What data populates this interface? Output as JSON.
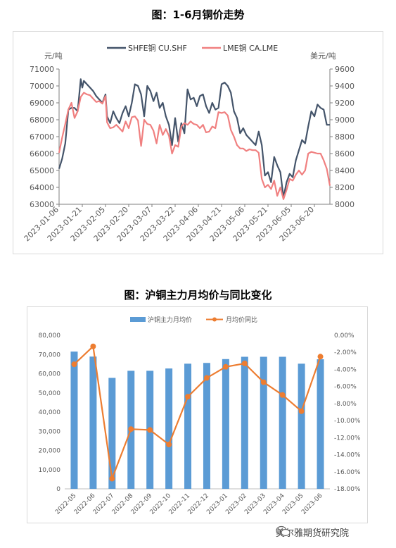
{
  "titles": {
    "chart1": "图：1-6月铜价走势",
    "chart2": "图：沪铜主力月均价与同比变化"
  },
  "watermark": "美尔雅期货研究院",
  "colors": {
    "shfe": "#44546a",
    "lme": "#f08080",
    "bar": "#5b9bd5",
    "yoy": "#ed7d31"
  },
  "chart_data": [
    {
      "type": "line",
      "left_unit": "元/吨",
      "right_unit": "美元/吨",
      "y_left": {
        "min": 63000,
        "max": 71000,
        "step": 1000
      },
      "y_right": {
        "min": 8000,
        "max": 9600,
        "step": 200
      },
      "x_ticks": [
        "2023-01-06",
        "2023-01-21",
        "2023-02-05",
        "2023-02-20",
        "2023-03-07",
        "2023-03-22",
        "2023-04-06",
        "2023-04-21",
        "2023-05-06",
        "2023-05-21",
        "2023-06-05",
        "2023-06-20"
      ],
      "x_range": [
        0,
        175
      ],
      "series": [
        {
          "name": "SHFE铜 CU.SHF",
          "axis": "left",
          "points": [
            [
              0,
              65100
            ],
            [
              2,
              65700
            ],
            [
              4,
              66600
            ],
            [
              6,
              68600
            ],
            [
              8,
              68700
            ],
            [
              10,
              68700
            ],
            [
              12,
              68500
            ],
            [
              14,
              70400
            ],
            [
              15,
              69900
            ],
            [
              16,
              70300
            ],
            [
              18,
              70100
            ],
            [
              20,
              69900
            ],
            [
              22,
              69700
            ],
            [
              24,
              69400
            ],
            [
              26,
              69200
            ],
            [
              28,
              69000
            ],
            [
              30,
              69500
            ],
            [
              31,
              68200
            ],
            [
              33,
              67800
            ],
            [
              35,
              68500
            ],
            [
              37,
              68100
            ],
            [
              39,
              67800
            ],
            [
              41,
              68400
            ],
            [
              43,
              68800
            ],
            [
              45,
              68200
            ],
            [
              47,
              69000
            ],
            [
              49,
              70100
            ],
            [
              51,
              70000
            ],
            [
              53,
              69500
            ],
            [
              55,
              68200
            ],
            [
              57,
              70000
            ],
            [
              59,
              69700
            ],
            [
              61,
              69100
            ],
            [
              63,
              69600
            ],
            [
              65,
              68700
            ],
            [
              67,
              69000
            ],
            [
              69,
              68200
            ],
            [
              71,
              67700
            ],
            [
              73,
              66500
            ],
            [
              75,
              68100
            ],
            [
              77,
              66700
            ],
            [
              79,
              67800
            ],
            [
              81,
              67200
            ],
            [
              83,
              69800
            ],
            [
              85,
              69200
            ],
            [
              87,
              69300
            ],
            [
              89,
              68800
            ],
            [
              91,
              69400
            ],
            [
              93,
              69500
            ],
            [
              95,
              68800
            ],
            [
              97,
              68400
            ],
            [
              99,
              69000
            ],
            [
              101,
              68600
            ],
            [
              103,
              68700
            ],
            [
              105,
              70100
            ],
            [
              107,
              70200
            ],
            [
              109,
              70000
            ],
            [
              111,
              69600
            ],
            [
              113,
              68500
            ],
            [
              115,
              68100
            ],
            [
              117,
              67200
            ],
            [
              119,
              67500
            ],
            [
              121,
              67100
            ],
            [
              123,
              66900
            ],
            [
              125,
              66700
            ],
            [
              127,
              66500
            ],
            [
              129,
              67300
            ],
            [
              131,
              66500
            ],
            [
              133,
              64700
            ],
            [
              135,
              64900
            ],
            [
              137,
              64300
            ],
            [
              139,
              65800
            ],
            [
              141,
              65300
            ],
            [
              143,
              64900
            ],
            [
              145,
              63400
            ],
            [
              147,
              64300
            ],
            [
              149,
              64800
            ],
            [
              151,
              64600
            ],
            [
              153,
              65600
            ],
            [
              155,
              66200
            ],
            [
              157,
              66800
            ],
            [
              159,
              66600
            ],
            [
              161,
              67600
            ],
            [
              163,
              68500
            ],
            [
              165,
              68200
            ],
            [
              167,
              68900
            ],
            [
              169,
              68700
            ],
            [
              171,
              68600
            ],
            [
              173,
              67700
            ],
            [
              175,
              67700
            ]
          ]
        },
        {
          "name": "LME铜 CA.LME",
          "axis": "right",
          "points": [
            [
              0,
              8610
            ],
            [
              2,
              8790
            ],
            [
              4,
              8950
            ],
            [
              6,
              9120
            ],
            [
              8,
              9200
            ],
            [
              10,
              9020
            ],
            [
              12,
              9100
            ],
            [
              14,
              9270
            ],
            [
              16,
              9320
            ],
            [
              18,
              9300
            ],
            [
              20,
              9290
            ],
            [
              22,
              9250
            ],
            [
              24,
              9210
            ],
            [
              26,
              9220
            ],
            [
              28,
              9190
            ],
            [
              30,
              9280
            ],
            [
              31,
              8970
            ],
            [
              33,
              8900
            ],
            [
              35,
              8910
            ],
            [
              37,
              8940
            ],
            [
              39,
              8900
            ],
            [
              41,
              8860
            ],
            [
              43,
              8980
            ],
            [
              45,
              8900
            ],
            [
              47,
              9030
            ],
            [
              49,
              9040
            ],
            [
              51,
              8990
            ],
            [
              53,
              8690
            ],
            [
              55,
              9000
            ],
            [
              57,
              8950
            ],
            [
              59,
              8940
            ],
            [
              61,
              8870
            ],
            [
              63,
              8720
            ],
            [
              65,
              8940
            ],
            [
              67,
              8820
            ],
            [
              69,
              8890
            ],
            [
              71,
              8810
            ],
            [
              73,
              8600
            ],
            [
              75,
              8700
            ],
            [
              77,
              8680
            ],
            [
              79,
              8920
            ],
            [
              81,
              8960
            ],
            [
              83,
              8940
            ],
            [
              85,
              8980
            ],
            [
              87,
              8950
            ],
            [
              89,
              8940
            ],
            [
              91,
              8900
            ],
            [
              93,
              8940
            ],
            [
              95,
              8850
            ],
            [
              97,
              8860
            ],
            [
              99,
              8920
            ],
            [
              101,
              8900
            ],
            [
              103,
              9090
            ],
            [
              105,
              9080
            ],
            [
              107,
              9090
            ],
            [
              109,
              9050
            ],
            [
              111,
              8880
            ],
            [
              113,
              8800
            ],
            [
              115,
              8700
            ],
            [
              117,
              8660
            ],
            [
              119,
              8660
            ],
            [
              121,
              8630
            ],
            [
              123,
              8650
            ],
            [
              125,
              8640
            ],
            [
              127,
              8640
            ],
            [
              129,
              8610
            ],
            [
              131,
              8300
            ],
            [
              133,
              8200
            ],
            [
              135,
              8230
            ],
            [
              137,
              8180
            ],
            [
              139,
              8280
            ],
            [
              141,
              8100
            ],
            [
              143,
              8200
            ],
            [
              145,
              8060
            ],
            [
              147,
              8170
            ],
            [
              149,
              8300
            ],
            [
              151,
              8280
            ],
            [
              153,
              8350
            ],
            [
              155,
              8400
            ],
            [
              157,
              8350
            ],
            [
              159,
              8400
            ],
            [
              161,
              8600
            ],
            [
              163,
              8620
            ],
            [
              165,
              8610
            ],
            [
              167,
              8600
            ],
            [
              169,
              8600
            ],
            [
              171,
              8520
            ],
            [
              173,
              8420
            ],
            [
              175,
              8220
            ]
          ]
        }
      ]
    },
    {
      "type": "bar",
      "categories": [
        "2022-05",
        "2022-06",
        "2022-07",
        "2022-08",
        "2022-09",
        "2022-10",
        "2022-11",
        "2022-12",
        "2023-01",
        "2023-02",
        "2023-03",
        "2023-04",
        "2023-05",
        "2023-06"
      ],
      "y_left": {
        "min": 0,
        "max": 80000,
        "step": 10000,
        "labels": [
          "0",
          "10,000",
          "20,000",
          "30,000",
          "40,000",
          "50,000",
          "60,000",
          "70,000",
          "80,000"
        ]
      },
      "y_right": {
        "min": -18,
        "max": 0,
        "step": 2,
        "labels": [
          "-18.00%",
          "-16.00%",
          "-14.00%",
          "-12.00%",
          "-10.00%",
          "-8.00%",
          "-6.00%",
          "-4.00%",
          "-2.00%",
          "0.00%"
        ]
      },
      "series": [
        {
          "name": "沪铜主力月均价",
          "type": "bar",
          "axis": "left",
          "values": [
            71500,
            68900,
            57800,
            61500,
            61500,
            62700,
            65200,
            65600,
            67600,
            68800,
            68800,
            68800,
            65200,
            67500
          ]
        },
        {
          "name": "月均价同比",
          "type": "line",
          "axis": "right",
          "values": [
            -3.4,
            -1.3,
            -16.8,
            -11.0,
            -11.1,
            -12.8,
            -7.2,
            -5.0,
            -3.7,
            -3.3,
            -5.5,
            -7.0,
            -8.9,
            -2.5
          ]
        }
      ]
    }
  ]
}
